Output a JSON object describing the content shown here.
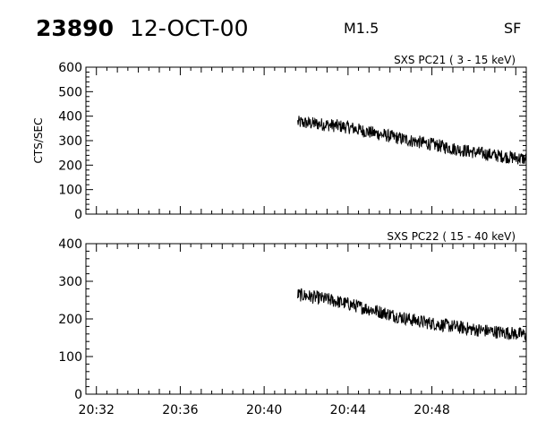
{
  "header": {
    "event_id": "23890",
    "date": "12-OCT-00",
    "flare_class": "M1.5",
    "source": "SF"
  },
  "chart_data": [
    {
      "type": "line",
      "title": "SXS PC21  (  3 - 15 keV)",
      "ylabel": "CTS/SEC",
      "xlabel": "",
      "xlim": [
        "20:31:30",
        "20:52:30"
      ],
      "ylim": [
        0,
        600
      ],
      "yticks": [
        0,
        100,
        200,
        300,
        400,
        500,
        600
      ],
      "grid": false,
      "series": [
        {
          "x": [
            "20:41:36",
            "20:43:00",
            "20:44:00",
            "20:45:00",
            "20:46:00",
            "20:47:00",
            "20:48:00",
            "20:49:00",
            "20:50:00",
            "20:51:00",
            "20:52:30"
          ],
          "y": [
            375,
            365,
            355,
            335,
            318,
            300,
            285,
            268,
            253,
            240,
            225
          ]
        }
      ]
    },
    {
      "type": "line",
      "title": "SXS PC22  ( 15 - 40 keV)",
      "ylabel": "",
      "xlabel": "",
      "xlim": [
        "20:31:30",
        "20:52:30"
      ],
      "ylim": [
        0,
        400
      ],
      "yticks": [
        0,
        100,
        200,
        300,
        400
      ],
      "xticks": [
        "20:32",
        "20:36",
        "20:40",
        "20:44",
        "20:48"
      ],
      "grid": false,
      "series": [
        {
          "x": [
            "20:41:36",
            "20:43:00",
            "20:44:00",
            "20:45:00",
            "20:46:00",
            "20:47:00",
            "20:48:00",
            "20:49:00",
            "20:50:00",
            "20:51:00",
            "20:52:30"
          ],
          "y": [
            265,
            252,
            240,
            226,
            212,
            198,
            188,
            180,
            172,
            166,
            158
          ]
        }
      ]
    }
  ]
}
